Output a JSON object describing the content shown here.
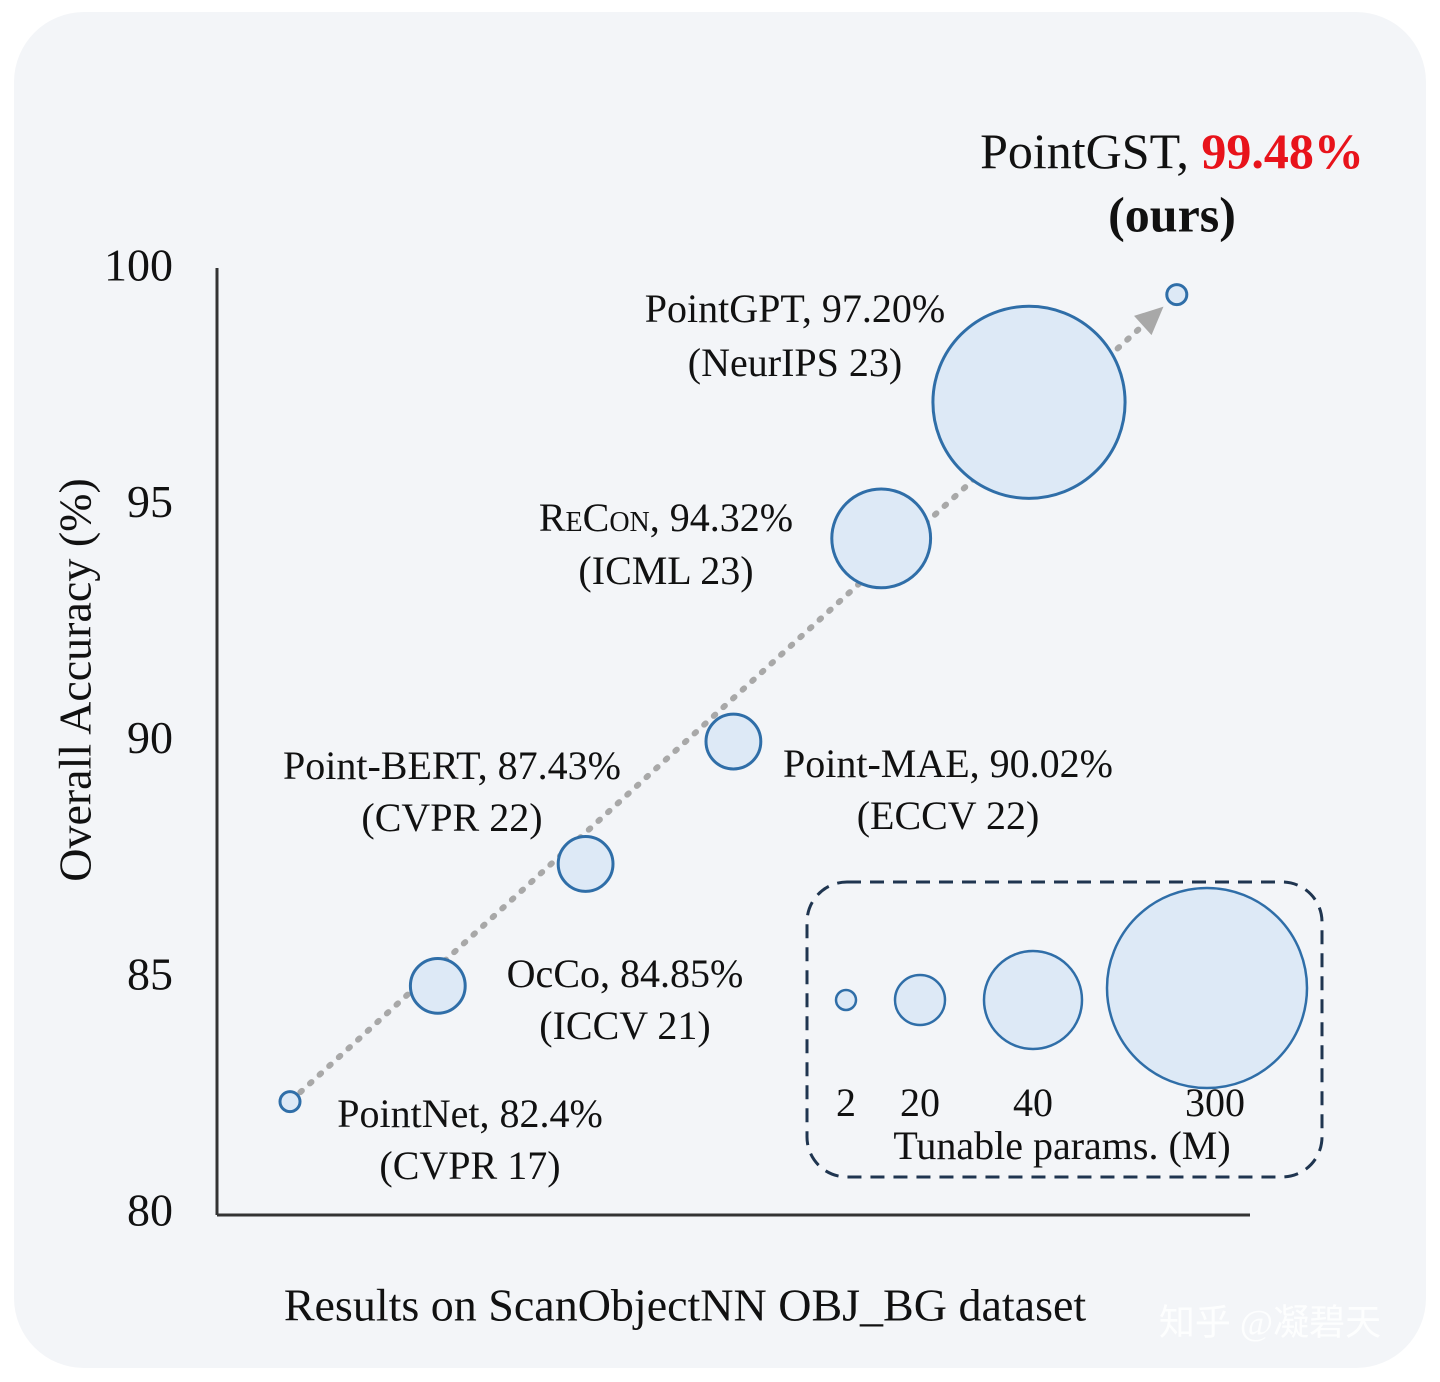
{
  "chart_data": {
    "type": "bubble",
    "x_label": "Results on ScanObjectNN OBJ_BG dataset",
    "y_label": "Overall Accuracy (%)",
    "ylim": [
      80,
      100
    ],
    "yticks": [
      80,
      85,
      90,
      95,
      100
    ],
    "grid": false,
    "color": "#dde9f6",
    "edge_color": "#2f6ea8",
    "highlight_color": "#e8131b",
    "points": [
      {
        "name": "PointNet",
        "value": 82.4,
        "value_label": "82.4%",
        "venue": "(CVPR 17)",
        "size": 2,
        "highlight": false
      },
      {
        "name": "OcCo",
        "value": 84.85,
        "value_label": "84.85%",
        "venue": "(ICCV 21)",
        "size": 22,
        "highlight": false
      },
      {
        "name": "Point-BERT",
        "value": 87.43,
        "value_label": "87.43%",
        "venue": "(CVPR 22)",
        "size": 22,
        "highlight": false
      },
      {
        "name": "Point-MAE",
        "value": 90.02,
        "value_label": "90.02%",
        "venue": "(ECCV 22)",
        "size": 22,
        "highlight": false
      },
      {
        "name": "ReCon",
        "value": 94.32,
        "value_label": "94.32%",
        "venue": "(ICML 23)",
        "size": 42,
        "highlight": false
      },
      {
        "name": "PointGPT",
        "value": 97.2,
        "value_label": "97.20%",
        "venue": "(NeurIPS 23)",
        "size": 280,
        "highlight": false
      },
      {
        "name": "PointGST",
        "value": 99.48,
        "value_label": "99.48%",
        "venue": "(ours)",
        "size": 2,
        "highlight": true
      }
    ],
    "size_legend": {
      "title": "Tunable params. (M)",
      "sizes": [
        2,
        20,
        40,
        300
      ]
    }
  },
  "watermark": "知乎 @凝碧天"
}
